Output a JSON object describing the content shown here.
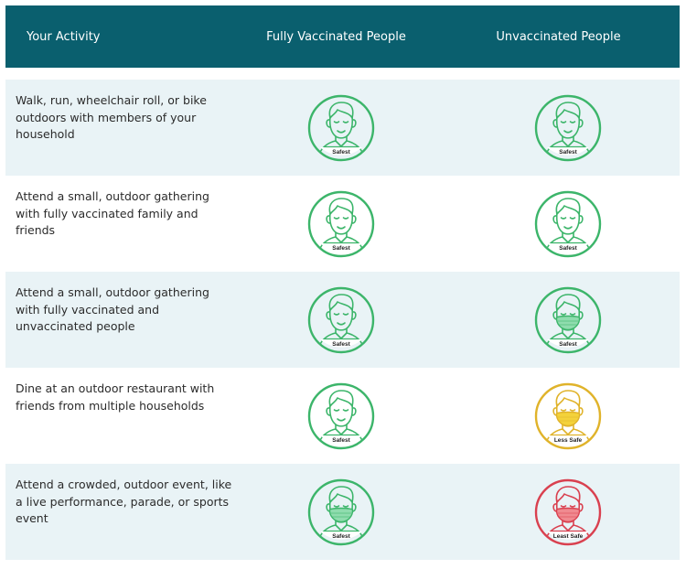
{
  "header": {
    "activity": "Your Activity",
    "vaccinated": "Fully Vaccinated People",
    "unvaccinated": "Unvaccinated People"
  },
  "colors": {
    "header_bg": "#0a5f6e",
    "safest": "#3cb56a",
    "less_safe": "#e0b32a",
    "least_safe": "#d9404f"
  },
  "rows": [
    {
      "activity": "Walk, run, wheelchair roll, or bike outdoors with members of your household",
      "vaccinated": {
        "label": "Safest",
        "level": "safest",
        "mask": false
      },
      "unvaccinated": {
        "label": "Safest",
        "level": "safest",
        "mask": false
      }
    },
    {
      "activity": "Attend a small, outdoor gathering with fully vaccinated family and friends",
      "vaccinated": {
        "label": "Safest",
        "level": "safest",
        "mask": false
      },
      "unvaccinated": {
        "label": "Safest",
        "level": "safest",
        "mask": false
      }
    },
    {
      "activity": "Attend a small, outdoor gathering with fully vaccinated and unvaccinated people",
      "vaccinated": {
        "label": "Safest",
        "level": "safest",
        "mask": false
      },
      "unvaccinated": {
        "label": "Safest",
        "level": "safest",
        "mask": true
      }
    },
    {
      "activity": "Dine at an outdoor restaurant with friends from multiple households",
      "vaccinated": {
        "label": "Safest",
        "level": "safest",
        "mask": false
      },
      "unvaccinated": {
        "label": "Less Safe",
        "level": "less_safe",
        "mask": true
      }
    },
    {
      "activity": "Attend a crowded, outdoor event, like a live performance, parade, or sports event",
      "vaccinated": {
        "label": "Safest",
        "level": "safest",
        "mask": true
      },
      "unvaccinated": {
        "label": "Least Safe",
        "level": "least_safe",
        "mask": true
      }
    }
  ]
}
